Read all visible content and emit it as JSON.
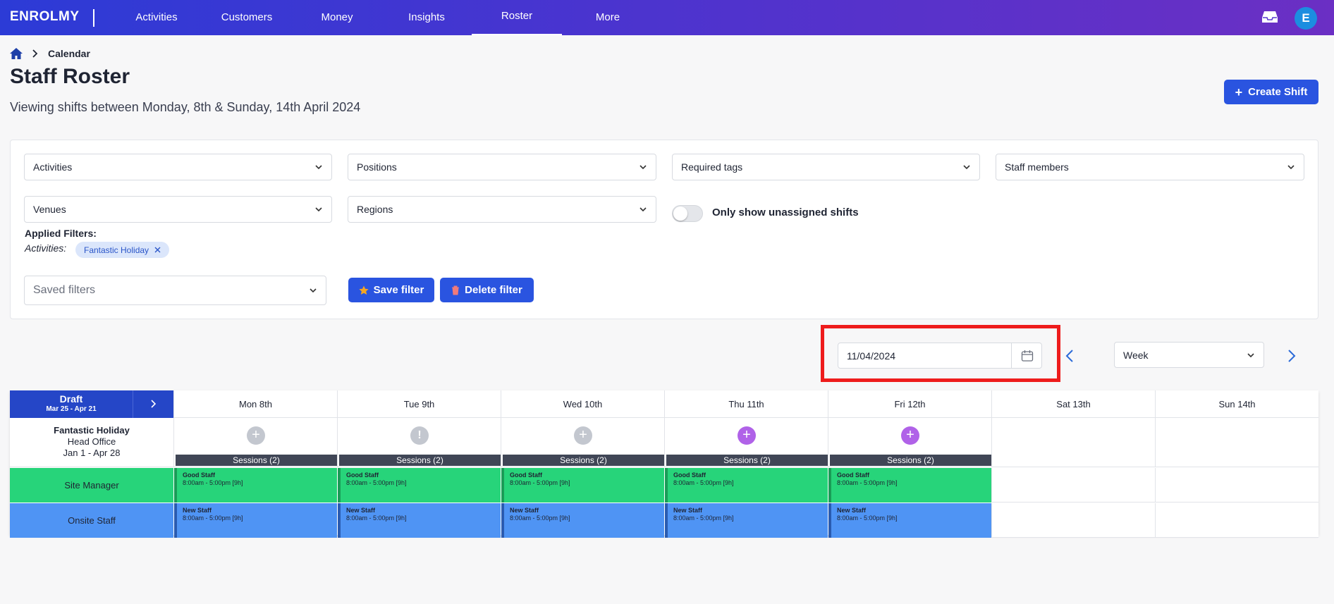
{
  "nav": {
    "logo": "ENROLMY",
    "items": [
      "Activities",
      "Customers",
      "Money",
      "Insights",
      "Roster",
      "More"
    ],
    "active": "Roster",
    "avatar_letter": "E"
  },
  "breadcrumb": {
    "current": "Calendar"
  },
  "header": {
    "title": "Staff Roster",
    "subtitle": "Viewing shifts between Monday, 8th & Sunday, 14th April 2024",
    "create_button": "Create Shift"
  },
  "filters": {
    "activities": "Activities",
    "positions": "Positions",
    "required_tags": "Required tags",
    "staff_members": "Staff members",
    "venues": "Venues",
    "regions": "Regions",
    "toggle_label": "Only show unassigned shifts",
    "applied_title": "Applied Filters:",
    "applied_key": "Activities:",
    "applied_chip": "Fantastic Holiday",
    "saved_filters_placeholder": "Saved filters",
    "save_button": "Save filter",
    "delete_button": "Delete filter"
  },
  "date_controls": {
    "date_value": "11/04/2024",
    "view_mode": "Week"
  },
  "roster": {
    "draft_title": "Draft",
    "draft_range": "Mar 25 - Apr 21",
    "days": [
      "Mon 8th",
      "Tue 9th",
      "Wed 10th",
      "Thu 11th",
      "Fri 12th",
      "Sat 13th",
      "Sun 14th"
    ],
    "activity": {
      "name": "Fantastic Holiday",
      "venue": "Head Office",
      "dates": "Jan 1 - Apr 28"
    },
    "session_label": "Sessions (2)",
    "roles": [
      "Site Manager",
      "Onsite Staff"
    ],
    "shift_rows": [
      {
        "role": "Site Manager",
        "staff": "Good Staff",
        "time": "8:00am - 5:00pm [9h]"
      },
      {
        "role": "Onsite Staff",
        "staff": "New Staff",
        "time": "8:00am - 5:00pm [9h]"
      }
    ],
    "colors": {
      "green": "#27d47a",
      "blue": "#4f94f4",
      "grey_plus": "#c3c7cf",
      "purple_plus": "#b062e8"
    }
  }
}
